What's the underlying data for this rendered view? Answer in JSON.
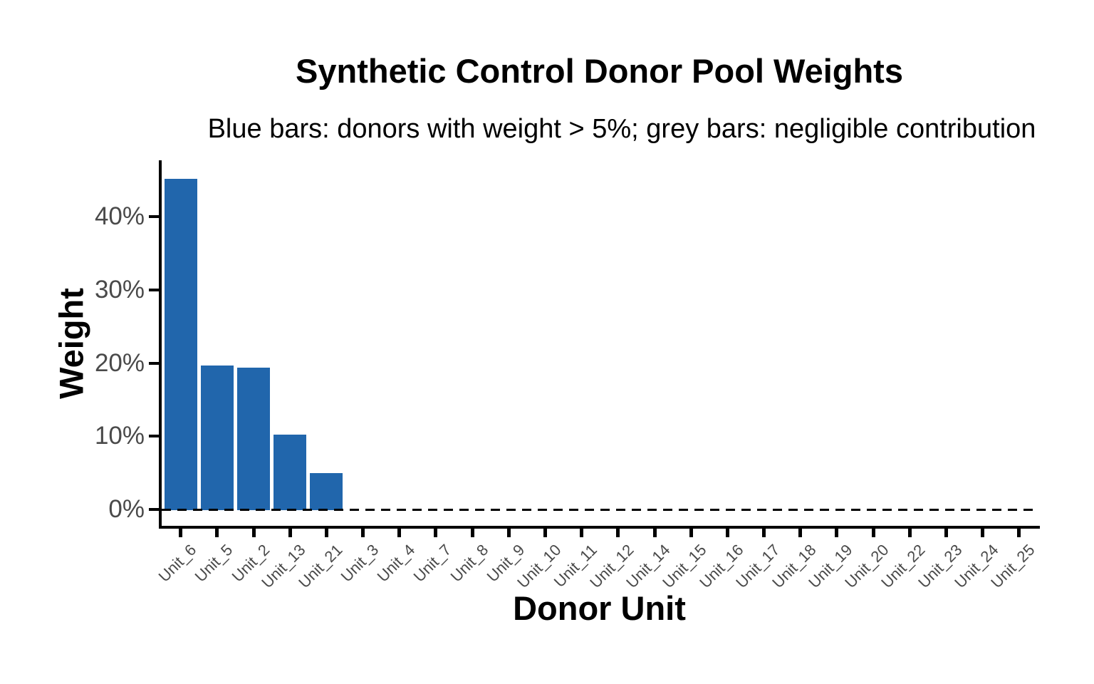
{
  "chart_data": {
    "type": "bar",
    "title": "Synthetic Control Donor Pool Weights",
    "subtitle": "Blue bars: donors with weight > 5%; grey bars: negligible contribution",
    "xlabel": "Donor Unit",
    "ylabel": "Weight",
    "categories": [
      "Unit_6",
      "Unit_5",
      "Unit_2",
      "Unit_13",
      "Unit_21",
      "Unit_3",
      "Unit_4",
      "Unit_7",
      "Unit_8",
      "Unit_9",
      "Unit_10",
      "Unit_11",
      "Unit_12",
      "Unit_14",
      "Unit_15",
      "Unit_16",
      "Unit_17",
      "Unit_18",
      "Unit_19",
      "Unit_20",
      "Unit_22",
      "Unit_23",
      "Unit_24",
      "Unit_25"
    ],
    "values": [
      45.3,
      19.8,
      19.5,
      10.3,
      5.1,
      0,
      0,
      0,
      0,
      0,
      0,
      0,
      0,
      0,
      0,
      0,
      0,
      0,
      0,
      0,
      0,
      0,
      0,
      0
    ],
    "unit": "%",
    "highlight_threshold_pct": 5,
    "y_ticks": {
      "values": [
        0,
        10,
        20,
        30,
        40
      ],
      "labels": [
        "0%",
        "10%",
        "20%",
        "30%",
        "40%"
      ]
    },
    "ylim": [
      0,
      47.5
    ],
    "grid": false,
    "legend_position": "none",
    "zero_line": {
      "y": 0,
      "style": "dashed",
      "color": "#000000"
    },
    "colors": {
      "bar_highlight": "#2166ac",
      "bar_negligible": "#9e9e9e",
      "axis_text": "#4a4a4a",
      "axis_line": "#000000",
      "title_text": "#000000",
      "background": "#ffffff"
    }
  }
}
